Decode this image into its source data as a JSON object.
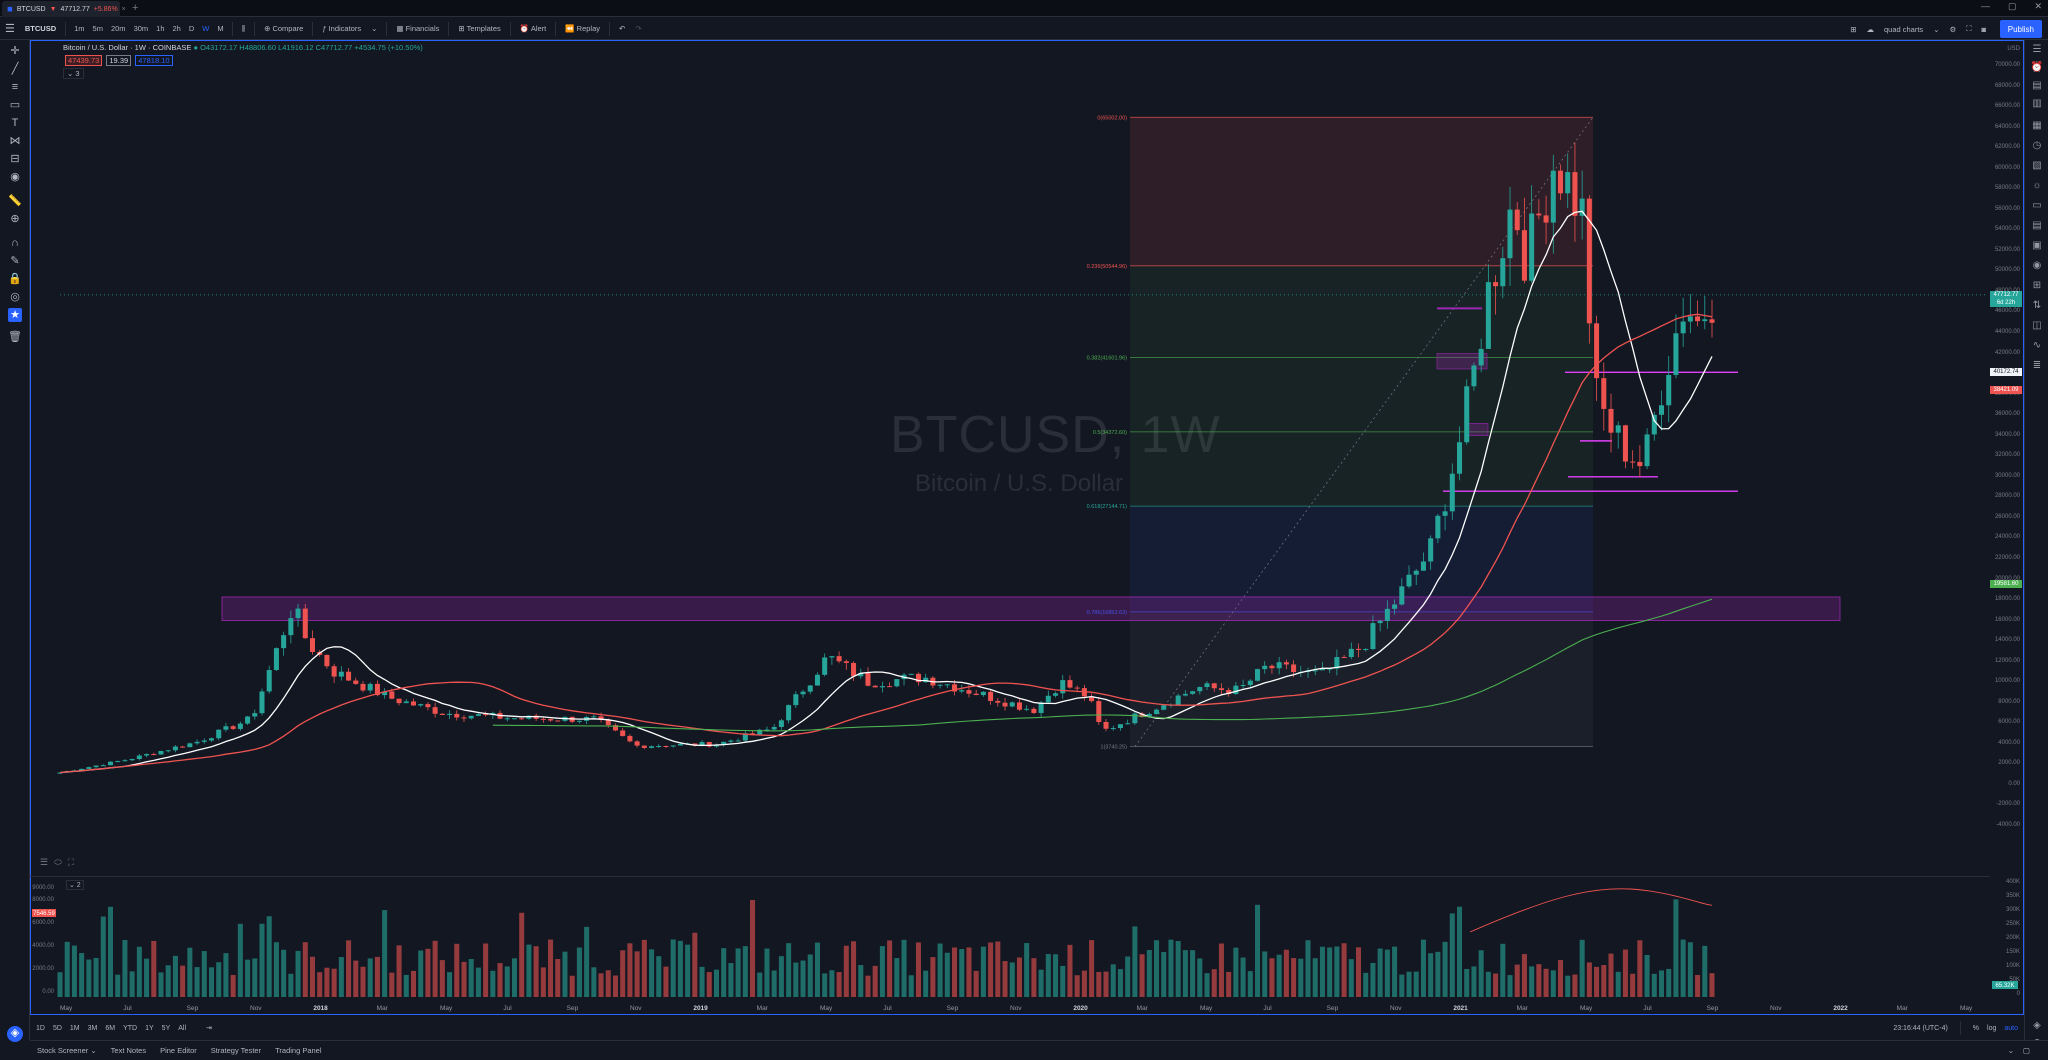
{
  "tab": {
    "symbol": "BTCUSD",
    "price": "47712.77",
    "change": "+5.86%"
  },
  "toolbar": {
    "symbol": "BTCUSD",
    "intervals": [
      "1m",
      "5m",
      "20m",
      "30m",
      "1h",
      "2h",
      "D",
      "W",
      "M"
    ],
    "active_interval": "W",
    "compare": "Compare",
    "indicators": "Indicators",
    "financials": "Financials",
    "templates": "Templates",
    "alert": "Alert",
    "replay": "Replay",
    "layout_name": "quad charts",
    "publish": "Publish"
  },
  "legend": {
    "title": "Bitcoin / U.S. Dollar · 1W · COINBASE",
    "ohlc": "O43172.17 H48806.60 L41916.12 C47712.77 +4534.75 (+10.50%)",
    "box1": "47439.73",
    "box2": "19.39",
    "box3": "47818.10",
    "collapsed_indicator": "3"
  },
  "watermark": {
    "symbol": "BTCUSD, 1W",
    "name": "Bitcoin / U.S. Dollar"
  },
  "fib_labels": [
    "0(65002.00)",
    "0.236(50544.96)",
    "0.382(41601.96)",
    "0.5(34372.60)",
    "0.618(27144.71)",
    "0.786(16852.63)",
    "1(3740.25)"
  ],
  "price_scale": [
    "70000.00",
    "68000.00",
    "66000.00",
    "64000.00",
    "62000.00",
    "60000.00",
    "58000.00",
    "56000.00",
    "54000.00",
    "52000.00",
    "50000.00",
    "48000.00",
    "46000.00",
    "44000.00",
    "42000.00",
    "40000.00",
    "38000.00",
    "36000.00",
    "34000.00",
    "32000.00",
    "30000.00",
    "28000.00",
    "26000.00",
    "24000.00",
    "22000.00",
    "20000.00",
    "18000.00",
    "16000.00",
    "14000.00",
    "12000.00",
    "10000.00",
    "8000.00",
    "6000.00",
    "4000.00",
    "2000.00",
    "0.00",
    "-2000.00",
    "-4000.00"
  ],
  "price_tags": {
    "last": "47712.77",
    "countdown": "6d 22h",
    "level1": "40172.74",
    "level2": "38421.09",
    "ma": "19581.60",
    "currency": "USD"
  },
  "volume_scale": [
    "9000.00",
    "8000.00",
    "6000.00",
    "4000.00",
    "2000.00",
    "0.00"
  ],
  "volume_right": [
    "400K",
    "350K",
    "300K",
    "250K",
    "200K",
    "150K",
    "100K",
    "50K",
    "0"
  ],
  "volume_tags": {
    "left": "7546.59",
    "right": "65.32K"
  },
  "time_axis": [
    "May",
    "Jul",
    "Sep",
    "Nov",
    "2018",
    "Mar",
    "May",
    "Jul",
    "Sep",
    "Nov",
    "2019",
    "Mar",
    "May",
    "Jul",
    "Sep",
    "Nov",
    "2020",
    "Mar",
    "May",
    "Jul",
    "Sep",
    "Nov",
    "2021",
    "Mar",
    "May",
    "Jul",
    "Sep",
    "Nov",
    "2022",
    "Mar",
    "May"
  ],
  "ranges": [
    "1D",
    "5D",
    "1M",
    "3M",
    "6M",
    "YTD",
    "1Y",
    "5Y",
    "All"
  ],
  "clock": "23:16:44 (UTC-4)",
  "scale_opts": [
    "%",
    "log",
    "auto"
  ],
  "bottom_tabs": [
    "Stock Screener",
    "Text Notes",
    "Pine Editor",
    "Strategy Tester",
    "Trading Panel"
  ],
  "colors": {
    "up": "#26a69a",
    "down": "#ef5350",
    "accent": "#2962ff",
    "magenta": "#e040fb"
  }
}
